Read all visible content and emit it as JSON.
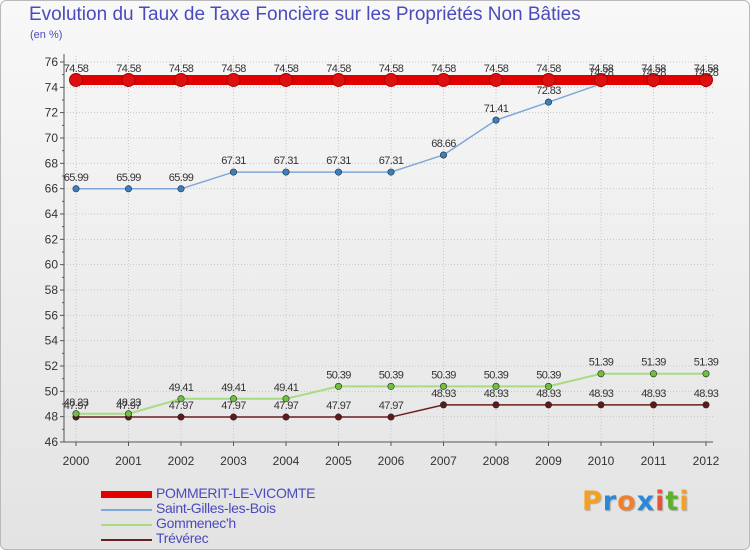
{
  "colors": {
    "title": "#4a4abe",
    "axis": "#555555",
    "grid": "#c8c8c8",
    "label": "#333333",
    "logo": [
      "#f5a020",
      "#2a88d8",
      "#f08030",
      "#2a88d8",
      "#f05030",
      "#60b030",
      "#f5a020"
    ]
  },
  "chart_data": {
    "type": "line",
    "title": "Evolution du Taux de Taxe Foncière sur les Propriétés Non Bâties",
    "ylabel": "(en %)",
    "xlabel": "",
    "ylim": [
      46,
      76
    ],
    "yticks": [
      46,
      48,
      50,
      52,
      54,
      56,
      58,
      60,
      62,
      64,
      66,
      68,
      70,
      72,
      74,
      76
    ],
    "grid": true,
    "legend": "bottom-left",
    "categories": [
      "2000",
      "2001",
      "2002",
      "2003",
      "2004",
      "2005",
      "2006",
      "2007",
      "2008",
      "2009",
      "2010",
      "2011",
      "2012"
    ],
    "series": [
      {
        "name": "POMMERIT-LE-VICOMTE",
        "color": "#e00000",
        "marker": "#dd1010",
        "values": [
          74.58,
          74.58,
          74.58,
          74.58,
          74.58,
          74.58,
          74.58,
          74.58,
          74.58,
          74.58,
          74.58,
          74.58,
          74.58
        ],
        "labels": [
          "74.58",
          "74.58",
          "74.58",
          "74.58",
          "74.58",
          "74.58",
          "74.58",
          "74.58",
          "74.58",
          "74.58",
          "74.58",
          "74.58",
          "74.58"
        ]
      },
      {
        "name": "Saint-Gilles-les-Bois",
        "color": "#7fa8d8",
        "marker": "#3a80c0",
        "values": [
          65.99,
          65.99,
          65.99,
          67.31,
          67.31,
          67.31,
          67.31,
          68.66,
          71.41,
          72.83,
          74.28,
          74.28,
          74.28
        ],
        "labels": [
          "65.99",
          "65.99",
          "65.99",
          "67.31",
          "67.31",
          "67.31",
          "67.31",
          "68.66",
          "71.41",
          "72.83",
          "74.28",
          "74.28",
          "74.28"
        ]
      },
      {
        "name": "Gommenec'h",
        "color": "#a8dc80",
        "marker": "#70c040",
        "values": [
          48.23,
          48.23,
          49.41,
          49.41,
          49.41,
          50.39,
          50.39,
          50.39,
          50.39,
          50.39,
          51.39,
          51.39,
          51.39
        ],
        "labels": [
          "48.23",
          "48.23",
          "49.41",
          "49.41",
          "49.41",
          "50.39",
          "50.39",
          "50.39",
          "50.39",
          "50.39",
          "51.39",
          "51.39",
          "51.39"
        ]
      },
      {
        "name": "Trévérec",
        "color": "#6a2020",
        "marker": "#601818",
        "values": [
          47.97,
          47.97,
          47.97,
          47.97,
          47.97,
          47.97,
          47.97,
          48.93,
          48.93,
          48.93,
          48.93,
          48.93,
          48.93
        ],
        "labels": [
          "47.97",
          "47.97",
          "47.97",
          "47.97",
          "47.97",
          "47.97",
          "47.97",
          "48.93",
          "48.93",
          "48.93",
          "48.93",
          "48.93",
          "48.93"
        ]
      }
    ]
  },
  "logo_letters": [
    "P",
    "r",
    "o",
    "x",
    "i",
    "t",
    "i"
  ]
}
